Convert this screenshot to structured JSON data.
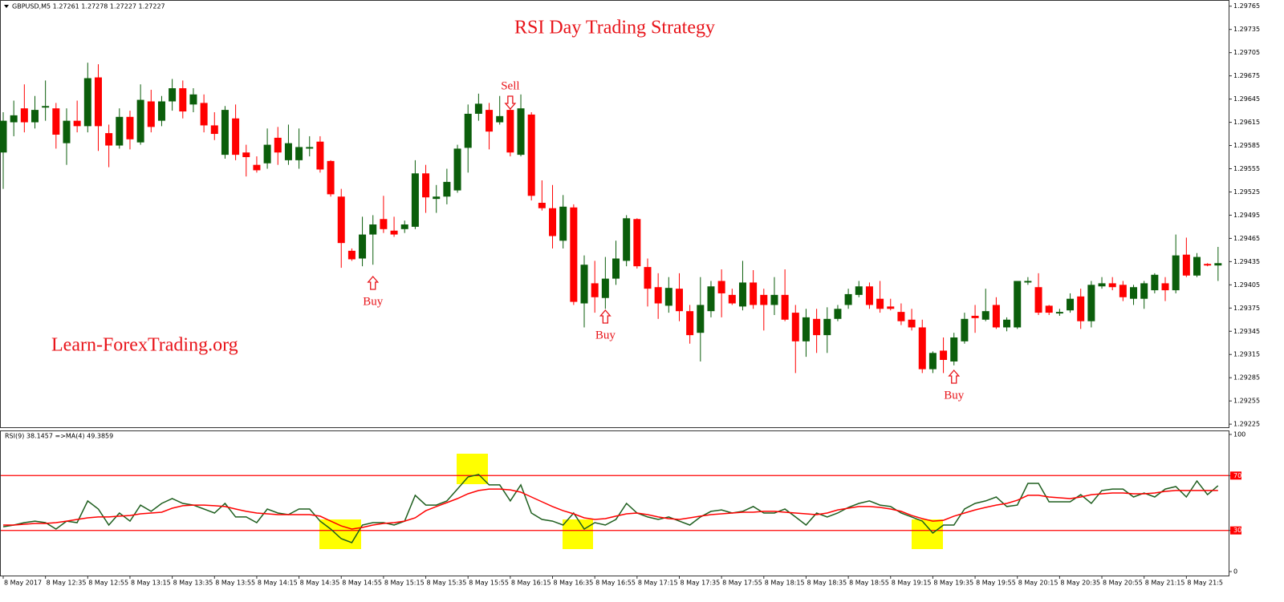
{
  "header": {
    "symbol_info": "GBPUSD,M5  1.27261 1.27278 1.27227 1.27227"
  },
  "chart_data": [
    {
      "type": "candlestick",
      "title": "RSI Day Trading Strategy",
      "watermark": "Learn-ForexTrading.org",
      "annotations": [
        "Sell",
        "Buy",
        "Buy",
        "Buy"
      ],
      "up_color": "#0b5e0b",
      "down_color": "#ff0000",
      "categories": [
        "8 May 2017",
        null,
        null,
        null,
        "8 May 12:35",
        null,
        null,
        null,
        "8 May 12:55",
        null,
        null,
        null,
        "8 May 13:15",
        null,
        null,
        null,
        "8 May 13:35",
        null,
        null,
        null,
        "8 May 13:55",
        null,
        null,
        null,
        "8 May 14:15",
        null,
        null,
        null,
        "8 May 14:35",
        null,
        null,
        null,
        "8 May 14:55",
        null,
        null,
        null,
        "8 May 15:15",
        null,
        null,
        null,
        "8 May 15:35",
        null,
        null,
        null,
        "8 May 15:55",
        null,
        null,
        null,
        "8 May 16:15",
        null,
        null,
        null,
        "8 May 16:35",
        null,
        null,
        null,
        "8 May 16:55",
        null,
        null,
        null,
        "8 May 17:15",
        null,
        null,
        null,
        "8 May 17:35",
        null,
        null,
        null,
        "8 May 17:55",
        null,
        null,
        null,
        "8 May 18:15",
        null,
        null,
        null,
        "8 May 18:35",
        null,
        null,
        null,
        "8 May 18:55",
        null,
        null,
        null,
        "8 May 19:15",
        null,
        null,
        null,
        "8 May 19:35",
        null,
        null,
        null,
        "8 May 19:55",
        null,
        null,
        null,
        "8 May 20:15",
        null,
        null,
        null,
        "8 May 20:35",
        null,
        null,
        null,
        "8 May 20:55",
        null,
        null,
        null,
        "8 May 21:15",
        null,
        null,
        null,
        "8 May 21:5",
        null,
        null,
        null
      ],
      "open": [
        1.29576,
        1.29615,
        1.29633,
        1.29615,
        1.29634,
        1.29633,
        1.29588,
        1.29617,
        1.2961,
        1.29673,
        1.29601,
        1.29585,
        1.29622,
        1.29589,
        1.29642,
        1.29617,
        1.29642,
        1.29659,
        1.29638,
        1.2964,
        1.29611,
        1.29573,
        1.2962,
        1.29576,
        1.2956,
        1.29562,
        1.29595,
        1.29566,
        1.29566,
        1.29581,
        1.2959,
        1.29565,
        1.29519,
        1.29449,
        1.29439,
        1.2947,
        1.2949,
        1.29475,
        1.29477,
        1.2948,
        1.29549,
        1.29516,
        1.29519,
        1.29527,
        1.29582,
        1.29626,
        1.29631,
        1.29615,
        1.29631,
        1.29573,
        1.29625,
        1.29511,
        1.29504,
        1.29462,
        1.29505,
        1.29381,
        1.29407,
        1.29388,
        1.29413,
        1.29436,
        1.2949,
        1.29428,
        1.29402,
        1.29378,
        1.294,
        1.29371,
        1.29343,
        1.29371,
        1.2941,
        1.29392,
        1.29377,
        1.29408,
        1.29392,
        1.29379,
        1.29392,
        1.29369,
        1.29332,
        1.29361,
        1.2934,
        1.29361,
        1.29379,
        1.29392,
        1.29403,
        1.29387,
        1.29377,
        1.2937,
        1.2936,
        1.2935,
        1.29296,
        1.2932,
        1.29306,
        1.29332,
        1.29365,
        1.2936,
        1.29379,
        1.2935,
        1.2935,
        1.29408,
        1.29402,
        1.29378,
        1.29368,
        1.29372,
        1.2939,
        1.29358,
        1.29403,
        1.29407,
        1.29405,
        1.29387,
        1.29387,
        1.29398,
        1.29407,
        1.29398,
        1.29444,
        1.29417,
        1.29432,
        1.2943
      ],
      "high": [
        1.29628,
        1.29643,
        1.29664,
        1.29649,
        1.29669,
        1.2964,
        1.29633,
        1.29643,
        1.29692,
        1.2969,
        1.29612,
        1.29633,
        1.2963,
        1.29664,
        1.29657,
        1.29649,
        1.29671,
        1.29669,
        1.29659,
        1.29651,
        1.29628,
        1.29636,
        1.29638,
        1.29586,
        1.29571,
        1.29607,
        1.29609,
        1.29612,
        1.29607,
        1.29597,
        1.29597,
        1.29566,
        1.29529,
        1.29452,
        1.29493,
        1.29495,
        1.2952,
        1.29493,
        1.29488,
        1.29566,
        1.2956,
        1.29534,
        1.29555,
        1.29586,
        1.29638,
        1.29652,
        1.2964,
        1.29649,
        1.29649,
        1.29651,
        1.29628,
        1.2954,
        1.29534,
        1.29521,
        1.29509,
        1.29443,
        1.29436,
        1.29441,
        1.29462,
        1.29495,
        1.29491,
        1.29439,
        1.2942,
        1.29415,
        1.2942,
        1.29379,
        1.29415,
        1.2941,
        1.29425,
        1.294,
        1.29436,
        1.29424,
        1.294,
        1.29415,
        1.29425,
        1.29379,
        1.29374,
        1.29374,
        1.29376,
        1.29379,
        1.294,
        1.2941,
        1.29408,
        1.2941,
        1.29387,
        1.29381,
        1.29374,
        1.2936,
        1.29319,
        1.29337,
        1.29343,
        1.29369,
        1.29379,
        1.294,
        1.29389,
        1.29363,
        1.2941,
        1.29415,
        1.2942,
        1.29379,
        1.29374,
        1.29394,
        1.294,
        1.2941,
        1.29415,
        1.29415,
        1.2941,
        1.29405,
        1.2941,
        1.2942,
        1.29415,
        1.2947,
        1.29466,
        1.29446,
        1.29433,
        1.29454
      ],
      "low": [
        1.29529,
        1.29597,
        1.29602,
        1.29607,
        1.29617,
        1.29581,
        1.2956,
        1.29602,
        1.29602,
        1.29578,
        1.29557,
        1.29581,
        1.2958,
        1.29586,
        1.29602,
        1.2961,
        1.2963,
        1.2962,
        1.29628,
        1.29602,
        1.29592,
        1.29568,
        1.29566,
        1.29545,
        1.2955,
        1.29555,
        1.2956,
        1.2956,
        1.29555,
        1.29571,
        1.2955,
        1.29519,
        1.29427,
        1.29436,
        1.29429,
        1.29431,
        1.29472,
        1.29467,
        1.29472,
        1.29477,
        1.29498,
        1.29498,
        1.29509,
        1.29524,
        1.2955,
        1.29617,
        1.2958,
        1.29612,
        1.29571,
        1.29571,
        1.29514,
        1.29501,
        1.29452,
        1.29452,
        1.29379,
        1.2935,
        1.29369,
        1.29374,
        1.29405,
        1.29429,
        1.29426,
        1.29377,
        1.29361,
        1.29369,
        1.29358,
        1.29329,
        1.29306,
        1.29363,
        1.29363,
        1.29379,
        1.29372,
        1.29374,
        1.29346,
        1.29366,
        1.29358,
        1.29291,
        1.29312,
        1.29317,
        1.29317,
        1.29358,
        1.29374,
        1.29389,
        1.29374,
        1.29369,
        1.29372,
        1.29353,
        1.29346,
        1.29291,
        1.29291,
        1.29291,
        1.29301,
        1.29329,
        1.29343,
        1.29358,
        1.29348,
        1.29345,
        1.29348,
        1.29405,
        1.29366,
        1.29366,
        1.29365,
        1.29369,
        1.29348,
        1.2935,
        1.294,
        1.29398,
        1.29384,
        1.29379,
        1.29374,
        1.29394,
        1.29384,
        1.29394,
        1.29415,
        1.29415,
        1.29429,
        1.2941
      ],
      "close": [
        1.29617,
        1.29624,
        1.29615,
        1.29631,
        1.29636,
        1.29599,
        1.29617,
        1.2961,
        1.29672,
        1.2961,
        1.29585,
        1.29622,
        1.29593,
        1.29644,
        1.29609,
        1.29642,
        1.29659,
        1.29629,
        1.29651,
        1.29611,
        1.296,
        1.29631,
        1.29573,
        1.2957,
        1.29553,
        1.29586,
        1.29576,
        1.29588,
        1.29583,
        1.29583,
        1.29554,
        1.29522,
        1.29459,
        1.29438,
        1.2947,
        1.29483,
        1.29477,
        1.2947,
        1.29483,
        1.29549,
        1.29518,
        1.29519,
        1.29538,
        1.29581,
        1.29626,
        1.29639,
        1.29603,
        1.29623,
        1.29576,
        1.29633,
        1.2952,
        1.29504,
        1.29468,
        1.29506,
        1.29383,
        1.29431,
        1.29389,
        1.29413,
        1.29439,
        1.29491,
        1.29429,
        1.294,
        1.29381,
        1.29401,
        1.29371,
        1.2934,
        1.29379,
        1.29403,
        1.29394,
        1.29381,
        1.29408,
        1.29379,
        1.29379,
        1.29392,
        1.2936,
        1.29332,
        1.29363,
        1.2934,
        1.29361,
        1.29374,
        1.29393,
        1.29403,
        1.29379,
        1.29374,
        1.29374,
        1.29358,
        1.2935,
        1.29296,
        1.29317,
        1.29308,
        1.29337,
        1.29361,
        1.29362,
        1.29371,
        1.2935,
        1.2936,
        1.2941,
        1.2941,
        1.29369,
        1.29369,
        1.2937,
        1.29387,
        1.29358,
        1.29405,
        1.29407,
        1.29402,
        1.29389,
        1.29402,
        1.29407,
        1.29418,
        1.29398,
        1.29443,
        1.29417,
        1.29441,
        1.2943,
        1.29433
      ],
      "ylim": [
        1.29221,
        1.29773
      ],
      "yticks": [
        1.29765,
        1.29735,
        1.29705,
        1.29675,
        1.29645,
        1.29615,
        1.29585,
        1.29555,
        1.29525,
        1.29495,
        1.29465,
        1.29435,
        1.29405,
        1.29375,
        1.29345,
        1.29315,
        1.29285,
        1.29255,
        1.29225
      ]
    },
    {
      "type": "line",
      "title": "RSI(9) 38.1457  =>MA(4) 49.3859",
      "series": [
        {
          "color": "#1e5e1e",
          "values": [
            32.7,
            33.9,
            35.7,
            36.8,
            35.7,
            31.0,
            36.8,
            35.7,
            51.5,
            45.6,
            33.9,
            42.7,
            36.8,
            48.5,
            43.9,
            49.7,
            53.2,
            49.7,
            48.5,
            45.6,
            42.7,
            49.7,
            39.8,
            39.8,
            35.7,
            45.6,
            42.7,
            41.5,
            45.6,
            45.6,
            36.8,
            31.0,
            24.0,
            21.1,
            33.9,
            35.7,
            35.7,
            33.9,
            36.8,
            55.6,
            48.5,
            48.5,
            51.5,
            60.2,
            69.0,
            70.8,
            63.2,
            63.2,
            51.5,
            63.2,
            42.7,
            38.0,
            36.8,
            33.9,
            42.7,
            31.0,
            35.7,
            33.9,
            38.0,
            49.7,
            42.7,
            39.8,
            38.0,
            39.8,
            36.8,
            33.9,
            39.8,
            43.9,
            45.0,
            42.7,
            43.9,
            47.4,
            42.7,
            42.7,
            45.6,
            39.8,
            33.9,
            42.7,
            39.8,
            42.7,
            46.8,
            49.7,
            51.5,
            48.5,
            47.4,
            42.7,
            39.8,
            36.8,
            28.1,
            33.9,
            33.9,
            45.6,
            49.7,
            51.5,
            54.4,
            47.4,
            48.5,
            64.3,
            64.3,
            50.9,
            50.9,
            50.9,
            56.1,
            49.7,
            59.1,
            60.2,
            60.2,
            54.4,
            57.3,
            54.4,
            60.2,
            62.0,
            54.4,
            66.1,
            56.1,
            62.6
          ]
        },
        {
          "color": "#ff0000",
          "values": [
            33.9,
            33.9,
            34.5,
            35.1,
            35.1,
            35.7,
            36.8,
            38.0,
            39.2,
            39.8,
            39.8,
            40.4,
            40.9,
            42.1,
            42.7,
            43.3,
            46.2,
            48.0,
            48.5,
            48.5,
            48.0,
            47.4,
            45.6,
            43.9,
            42.7,
            42.1,
            41.5,
            41.5,
            41.5,
            41.5,
            40.4,
            36.8,
            33.3,
            31.0,
            32.2,
            33.9,
            35.1,
            35.7,
            36.8,
            39.2,
            44.4,
            47.4,
            50.3,
            53.2,
            56.7,
            59.1,
            60.2,
            60.2,
            59.6,
            57.9,
            54.4,
            50.9,
            47.4,
            44.4,
            42.1,
            39.2,
            38.0,
            38.6,
            40.4,
            42.1,
            42.7,
            41.5,
            39.8,
            38.6,
            38.0,
            39.2,
            40.4,
            41.5,
            42.1,
            42.7,
            43.3,
            43.3,
            43.9,
            43.9,
            43.3,
            42.7,
            42.1,
            41.5,
            42.7,
            45.0,
            46.2,
            47.4,
            47.4,
            46.8,
            45.6,
            43.9,
            40.9,
            38.6,
            36.8,
            37.4,
            40.4,
            42.7,
            45.0,
            46.8,
            48.5,
            49.7,
            52.0,
            55.6,
            55.6,
            54.4,
            53.8,
            53.2,
            54.4,
            56.1,
            56.7,
            57.3,
            57.3,
            56.7,
            56.7,
            57.3,
            58.5,
            59.1,
            59.1,
            59.1,
            59.1,
            59.1
          ]
        }
      ],
      "levels": [
        70,
        30
      ],
      "level_color": "#ff0000",
      "ylim": [
        -2.9,
        102.9
      ],
      "yticks": [
        100,
        70,
        30,
        0
      ]
    }
  ]
}
